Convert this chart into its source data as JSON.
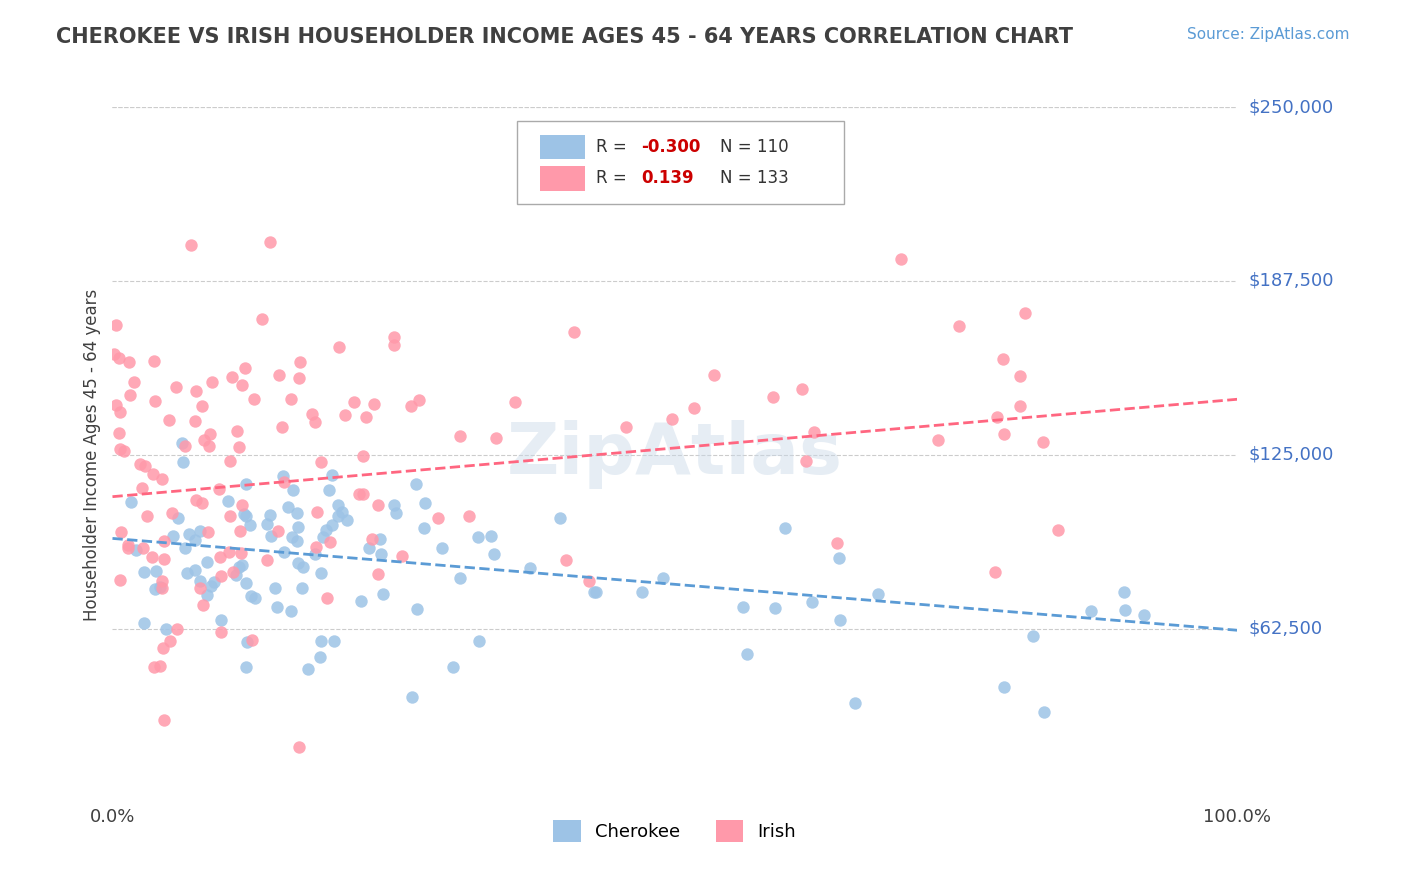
{
  "title": "CHEROKEE VS IRISH HOUSEHOLDER INCOME AGES 45 - 64 YEARS CORRELATION CHART",
  "source": "Source: ZipAtlas.com",
  "xlabel": "",
  "ylabel": "Householder Income Ages 45 - 64 years",
  "xlim": [
    0,
    1
  ],
  "ylim": [
    0,
    250000
  ],
  "xticks": [
    0,
    1
  ],
  "xticklabels": [
    "0.0%",
    "100.0%"
  ],
  "yticks": [
    62500,
    125000,
    187500,
    250000
  ],
  "yticklabels": [
    "$62,500",
    "$125,000",
    "$187,500",
    "$250,000"
  ],
  "ytick_color": "#4472C4",
  "cherokee_color": "#9DC3E6",
  "irish_color": "#FF99AA",
  "cherokee_R": -0.3,
  "cherokee_N": 110,
  "irish_R": 0.139,
  "irish_N": 133,
  "cherokee_line_color": "#5B9BD5",
  "irish_line_color": "#FF6680",
  "grid_color": "#CCCCCC",
  "background_color": "#FFFFFF",
  "watermark": "ZipAtlas",
  "title_color": "#404040",
  "title_fontsize": 15,
  "source_color": "#5B9BD5",
  "legend_R_color_cherokee": "#CC0000",
  "legend_R_color_irish": "#CC0000"
}
